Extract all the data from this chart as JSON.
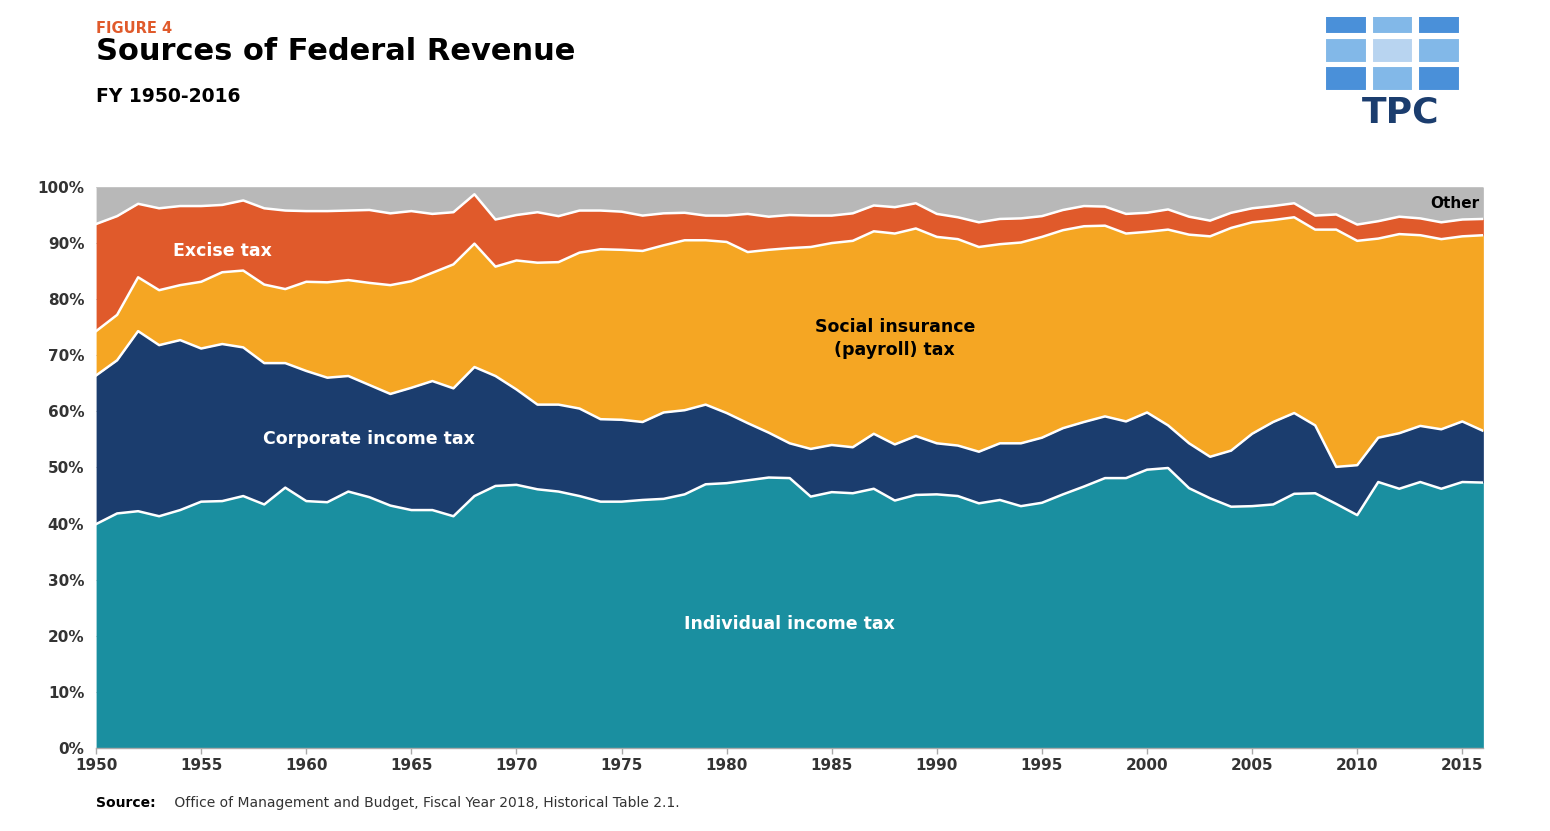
{
  "title": "Sources of Federal Revenue",
  "figure_label": "FIGURE 4",
  "subtitle": "FY 1950-2016",
  "source_bold": "Source:",
  "source_rest": " Office of Management and Budget, Fiscal Year 2018, Historical Table 2.1.",
  "years": [
    1950,
    1951,
    1952,
    1953,
    1954,
    1955,
    1956,
    1957,
    1958,
    1959,
    1960,
    1961,
    1962,
    1963,
    1964,
    1965,
    1966,
    1967,
    1968,
    1969,
    1970,
    1971,
    1972,
    1973,
    1974,
    1975,
    1976,
    1977,
    1978,
    1979,
    1980,
    1981,
    1982,
    1983,
    1984,
    1985,
    1986,
    1987,
    1988,
    1989,
    1990,
    1991,
    1992,
    1993,
    1994,
    1995,
    1996,
    1997,
    1998,
    1999,
    2000,
    2001,
    2002,
    2003,
    2004,
    2005,
    2006,
    2007,
    2008,
    2009,
    2010,
    2011,
    2012,
    2013,
    2014,
    2015,
    2016
  ],
  "individual_income_tax": [
    39.9,
    41.8,
    42.2,
    41.3,
    42.4,
    43.9,
    44.0,
    44.9,
    43.4,
    46.4,
    44.0,
    43.8,
    45.7,
    44.7,
    43.2,
    42.4,
    42.4,
    41.3,
    44.9,
    46.7,
    46.9,
    46.1,
    45.7,
    44.9,
    43.9,
    43.9,
    44.2,
    44.4,
    45.2,
    47.0,
    47.2,
    47.7,
    48.2,
    48.1,
    44.8,
    45.6,
    45.4,
    46.2,
    44.1,
    45.1,
    45.2,
    44.9,
    43.6,
    44.2,
    43.1,
    43.7,
    45.2,
    46.6,
    48.1,
    48.1,
    49.6,
    49.9,
    46.3,
    44.5,
    43.0,
    43.1,
    43.4,
    45.3,
    45.4,
    43.5,
    41.5,
    47.4,
    46.2,
    47.4,
    46.2,
    47.4,
    47.3
  ],
  "corporate_income_tax": [
    26.5,
    27.3,
    32.1,
    30.5,
    30.3,
    27.3,
    28.0,
    26.5,
    25.2,
    22.2,
    23.2,
    22.2,
    20.6,
    20.0,
    19.9,
    21.8,
    23.0,
    22.8,
    23.0,
    19.6,
    17.0,
    15.1,
    15.5,
    15.6,
    14.7,
    14.6,
    13.9,
    15.4,
    15.0,
    14.2,
    12.5,
    10.2,
    8.0,
    6.2,
    8.5,
    8.4,
    8.2,
    9.8,
    10.0,
    10.5,
    9.1,
    9.0,
    9.2,
    10.1,
    11.2,
    11.6,
    11.8,
    11.5,
    11.0,
    10.1,
    10.2,
    7.6,
    8.0,
    7.4,
    10.0,
    12.9,
    14.7,
    14.4,
    12.1,
    6.6,
    8.9,
    7.9,
    9.9,
    10.0,
    10.6,
    10.8,
    9.2
  ],
  "social_insurance_tax": [
    7.9,
    8.1,
    9.6,
    9.8,
    9.8,
    11.9,
    12.8,
    13.7,
    14.0,
    13.2,
    15.9,
    17.0,
    17.1,
    18.2,
    19.4,
    19.0,
    19.3,
    22.1,
    22.0,
    19.5,
    23.0,
    25.3,
    25.4,
    27.8,
    30.3,
    30.3,
    30.5,
    29.8,
    30.3,
    29.3,
    30.5,
    30.5,
    32.6,
    34.8,
    36.0,
    36.0,
    36.8,
    36.1,
    37.6,
    37.0,
    36.8,
    36.8,
    36.5,
    35.5,
    35.8,
    35.8,
    35.3,
    34.9,
    34.0,
    33.5,
    32.2,
    34.9,
    37.2,
    39.3,
    39.7,
    37.7,
    36.0,
    34.9,
    34.9,
    42.3,
    40.0,
    35.5,
    35.5,
    34.0,
    33.9,
    33.0,
    34.9
  ],
  "excise_tax": [
    19.1,
    17.6,
    13.1,
    14.6,
    14.1,
    13.5,
    12.0,
    12.5,
    13.6,
    14.0,
    12.6,
    12.7,
    12.4,
    13.0,
    12.8,
    12.5,
    10.5,
    9.3,
    8.8,
    8.4,
    8.1,
    9.0,
    8.2,
    7.5,
    6.9,
    6.8,
    6.3,
    5.7,
    4.9,
    4.4,
    4.7,
    6.8,
    5.9,
    5.9,
    5.6,
    4.9,
    4.9,
    4.6,
    4.7,
    4.5,
    4.1,
    3.9,
    4.4,
    4.5,
    4.3,
    3.7,
    3.6,
    3.6,
    3.4,
    3.5,
    3.4,
    3.6,
    3.2,
    2.8,
    2.7,
    2.5,
    2.5,
    2.5,
    2.5,
    2.7,
    2.9,
    3.1,
    3.1,
    3.0,
    3.0,
    3.0,
    2.9
  ],
  "other": [
    6.6,
    5.2,
    3.0,
    3.8,
    3.4,
    3.4,
    3.2,
    2.4,
    3.8,
    4.2,
    4.3,
    4.3,
    4.2,
    4.1,
    4.7,
    4.3,
    4.8,
    4.5,
    1.3,
    5.8,
    5.0,
    4.5,
    5.2,
    4.2,
    4.2,
    4.4,
    5.1,
    4.7,
    4.6,
    5.1,
    5.1,
    4.8,
    5.3,
    5.0,
    5.1,
    5.1,
    4.7,
    3.3,
    3.6,
    2.9,
    4.8,
    5.4,
    6.3,
    5.7,
    5.6,
    5.2,
    4.1,
    3.4,
    3.5,
    4.8,
    4.6,
    4.0,
    5.3,
    6.0,
    4.6,
    3.8,
    3.4,
    2.9,
    5.1,
    4.9,
    6.7,
    6.1,
    5.3,
    5.6,
    6.3,
    5.8,
    5.7
  ],
  "color_individual": "#1a8fa0",
  "color_corporate": "#1b3d6e",
  "color_social": "#f5a623",
  "color_excise": "#e05a2b",
  "color_other": "#b8b8b8",
  "color_figure_label": "#e05a2b",
  "tpc_colors": [
    "#4472c4",
    "#82acd4",
    "#4472c4",
    "#82acd4",
    "#ffffff",
    "#4472c4",
    "#4472c4",
    "#82acd4",
    "#4472c4"
  ],
  "tpc_text_color": "#1b3d6e"
}
